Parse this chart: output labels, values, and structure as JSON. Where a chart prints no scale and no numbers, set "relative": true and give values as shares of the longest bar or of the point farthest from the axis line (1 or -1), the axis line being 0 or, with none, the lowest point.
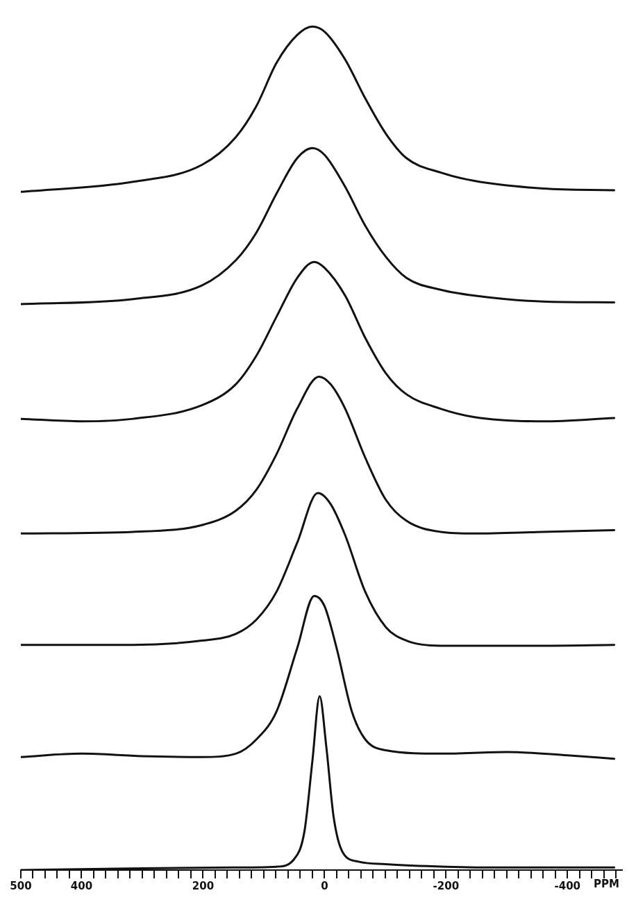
{
  "chart_data": {
    "type": "line",
    "relative": true,
    "xlabel": "PPM",
    "xlim": [
      500,
      -490
    ],
    "marker": "none",
    "line_style": "solid",
    "xticks": [
      500,
      {
        "value": 480,
        "label": null
      },
      {
        "value": 460,
        "label": null
      },
      {
        "value": 440,
        "label": null
      },
      {
        "value": 420,
        "label": null
      },
      400,
      {
        "value": 380,
        "label": null
      },
      {
        "value": 360,
        "label": null
      },
      {
        "value": 340,
        "label": null
      },
      {
        "value": 320,
        "label": null
      },
      {
        "value": 300,
        "label": null
      },
      {
        "value": 280,
        "label": null
      },
      {
        "value": 260,
        "label": null
      },
      {
        "value": 240,
        "label": null
      },
      {
        "value": 220,
        "label": null
      },
      200,
      {
        "value": 180,
        "label": null
      },
      {
        "value": 160,
        "label": null
      },
      {
        "value": 140,
        "label": null
      },
      {
        "value": 120,
        "label": null
      },
      {
        "value": 100,
        "label": null
      },
      {
        "value": 80,
        "label": null
      },
      {
        "value": 60,
        "label": null
      },
      {
        "value": 40,
        "label": null
      },
      {
        "value": 20,
        "label": null
      },
      0,
      {
        "value": -20,
        "label": null
      },
      {
        "value": -40,
        "label": null
      },
      {
        "value": -60,
        "label": null
      },
      {
        "value": -80,
        "label": null
      },
      {
        "value": -100,
        "label": null
      },
      {
        "value": -120,
        "label": null
      },
      {
        "value": -140,
        "label": null
      },
      {
        "value": -160,
        "label": null
      },
      {
        "value": -180,
        "label": null
      },
      -200,
      {
        "value": -220,
        "label": null
      },
      {
        "value": -240,
        "label": null
      },
      {
        "value": -260,
        "label": null
      },
      {
        "value": -280,
        "label": null
      },
      {
        "value": -300,
        "label": null
      },
      {
        "value": -320,
        "label": null
      },
      {
        "value": -340,
        "label": null
      },
      {
        "value": -360,
        "label": null
      },
      {
        "value": -380,
        "label": null
      },
      -400,
      {
        "value": -420,
        "label": null
      },
      {
        "value": -440,
        "label": null
      },
      {
        "value": -460,
        "label": null
      },
      {
        "value": -480,
        "label": null
      }
    ],
    "series": [
      {
        "color": "#111111",
        "x": [
          500,
          315,
          202,
          146,
          112,
          79,
          45,
          20,
          0,
          -34,
          -67,
          -101,
          -135,
          -191,
          -247,
          -360,
          -477
        ],
        "values": [
          0.804,
          0.816,
          0.836,
          0.869,
          0.906,
          0.957,
          0.99,
          1.0,
          0.994,
          0.961,
          0.915,
          0.873,
          0.844,
          0.827,
          0.817,
          0.808,
          0.806
        ]
      },
      {
        "color": "#111111",
        "x": [
          500,
          315,
          202,
          146,
          112,
          79,
          45,
          20,
          0,
          -34,
          -67,
          -101,
          -135,
          -191,
          -247,
          -360,
          -477
        ],
        "values": [
          0.671,
          0.677,
          0.693,
          0.723,
          0.756,
          0.802,
          0.844,
          0.856,
          0.848,
          0.81,
          0.764,
          0.727,
          0.702,
          0.688,
          0.681,
          0.674,
          0.673
        ]
      },
      {
        "color": "#111111",
        "x": [
          500,
          400,
          315,
          202,
          146,
          112,
          79,
          45,
          17,
          0,
          -34,
          -67,
          -101,
          -135,
          -191,
          -247,
          -360,
          -477
        ],
        "values": [
          0.535,
          0.532,
          0.535,
          0.551,
          0.576,
          0.61,
          0.656,
          0.702,
          0.721,
          0.714,
          0.681,
          0.631,
          0.589,
          0.564,
          0.547,
          0.537,
          0.532,
          0.536
        ]
      },
      {
        "color": "#111111",
        "x": [
          500,
          315,
          202,
          146,
          112,
          79,
          45,
          9,
          -10,
          -34,
          -67,
          -101,
          -135,
          -191,
          -247,
          -360,
          -477
        ],
        "values": [
          0.399,
          0.401,
          0.409,
          0.426,
          0.451,
          0.493,
          0.547,
          0.585,
          0.576,
          0.547,
          0.489,
          0.439,
          0.414,
          0.401,
          0.399,
          0.401,
          0.403
        ]
      },
      {
        "color": "#111111",
        "x": [
          500,
          315,
          202,
          146,
          112,
          79,
          45,
          11,
          -10,
          -34,
          -67,
          -101,
          -135,
          -191,
          -360,
          -477
        ],
        "values": [
          0.267,
          0.267,
          0.272,
          0.28,
          0.297,
          0.33,
          0.388,
          0.447,
          0.434,
          0.397,
          0.33,
          0.288,
          0.272,
          0.266,
          0.266,
          0.267
        ]
      },
      {
        "color": "#111111",
        "x": [
          500,
          400,
          300,
          202,
          146,
          112,
          79,
          45,
          17,
          0,
          -20,
          -45,
          -67,
          -101,
          -191,
          -300,
          -400,
          -477
        ],
        "values": [
          0.134,
          0.138,
          0.135,
          0.134,
          0.138,
          0.155,
          0.188,
          0.263,
          0.325,
          0.313,
          0.263,
          0.188,
          0.155,
          0.142,
          0.138,
          0.14,
          0.136,
          0.132
        ]
      },
      {
        "color": "#111111",
        "x": [
          500,
          300,
          150,
          79,
          50,
          33,
          20,
          8,
          -3,
          -15,
          -30,
          -56,
          -100,
          -200,
          -300,
          -477
        ],
        "values": [
          0,
          0.002,
          0.003,
          0.004,
          0.013,
          0.046,
          0.129,
          0.206,
          0.146,
          0.063,
          0.021,
          0.01,
          0.007,
          0.004,
          0.003,
          0.003
        ]
      }
    ]
  }
}
